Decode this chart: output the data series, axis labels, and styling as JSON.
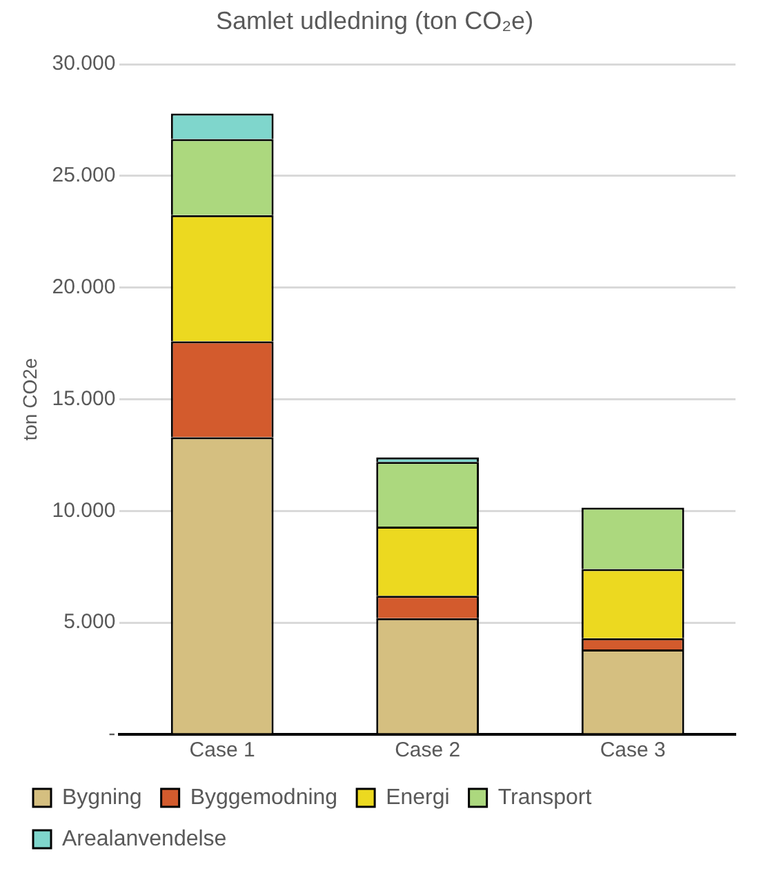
{
  "chart_data": {
    "type": "bar",
    "title": "Samlet udledning (ton CO₂e)",
    "ylabel": "ton CO2e",
    "categories": [
      "Case 1",
      "Case 2",
      "Case 3"
    ],
    "stacked": true,
    "series": [
      {
        "name": "Bygning",
        "color": "#d5bf80",
        "values": [
          13300,
          5200,
          3800
        ]
      },
      {
        "name": "Byggemodning",
        "color": "#d35b2d",
        "values": [
          4300,
          1000,
          500
        ]
      },
      {
        "name": "Energi",
        "color": "#ecd920",
        "values": [
          5650,
          3100,
          3100
        ]
      },
      {
        "name": "Transport",
        "color": "#acd87e",
        "values": [
          3400,
          2900,
          2750
        ]
      },
      {
        "name": "Arealanvendelse",
        "color": "#7fd6cc",
        "values": [
          1150,
          200,
          null
        ]
      }
    ],
    "ylim": [
      0,
      30000
    ],
    "yticks": [
      {
        "value": 0,
        "label": "-"
      },
      {
        "value": 5000,
        "label": "5.000"
      },
      {
        "value": 10000,
        "label": "10.000"
      },
      {
        "value": 15000,
        "label": "15.000"
      },
      {
        "value": 20000,
        "label": "20.000"
      },
      {
        "value": 25000,
        "label": "25.000"
      },
      {
        "value": 30000,
        "label": "30.000"
      }
    ],
    "grid": "y",
    "legend": "bottom"
  }
}
